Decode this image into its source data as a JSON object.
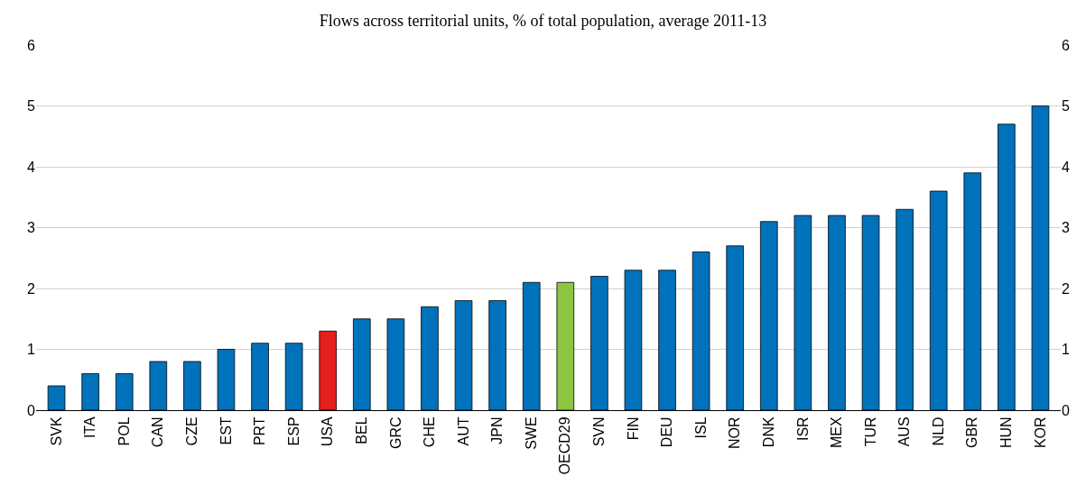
{
  "chart_data": {
    "type": "bar",
    "title": "Flows across territorial units, % of total population, average 2011-13",
    "categories": [
      "SVK",
      "ITA",
      "POL",
      "CAN",
      "CZE",
      "EST",
      "PRT",
      "ESP",
      "USA",
      "BEL",
      "GRC",
      "CHE",
      "AUT",
      "JPN",
      "SWE",
      "OECD29",
      "SVN",
      "FIN",
      "DEU",
      "ISL",
      "NOR",
      "DNK",
      "ISR",
      "MEX",
      "TUR",
      "AUS",
      "NLD",
      "GBR",
      "HUN",
      "KOR"
    ],
    "values": [
      0.4,
      0.6,
      0.6,
      0.8,
      0.8,
      1.0,
      1.1,
      1.1,
      1.3,
      1.5,
      1.5,
      1.7,
      1.8,
      1.8,
      2.1,
      2.1,
      2.2,
      2.3,
      2.3,
      2.6,
      2.7,
      3.1,
      3.2,
      3.2,
      3.2,
      3.3,
      3.6,
      3.9,
      4.7,
      5.0
    ],
    "colors": [
      "#0072bc",
      "#0072bc",
      "#0072bc",
      "#0072bc",
      "#0072bc",
      "#0072bc",
      "#0072bc",
      "#0072bc",
      "#e3201b",
      "#0072bc",
      "#0072bc",
      "#0072bc",
      "#0072bc",
      "#0072bc",
      "#0072bc",
      "#8cc540",
      "#0072bc",
      "#0072bc",
      "#0072bc",
      "#0072bc",
      "#0072bc",
      "#0072bc",
      "#0072bc",
      "#0072bc",
      "#0072bc",
      "#0072bc",
      "#0072bc",
      "#0072bc",
      "#0072bc",
      "#0072bc"
    ],
    "ylim": [
      0,
      6
    ],
    "yticks": [
      0,
      1,
      2,
      3,
      4,
      5,
      6
    ],
    "y2lim": [
      0,
      6
    ],
    "y2ticks": [
      0,
      1,
      2,
      3,
      4,
      5,
      6
    ],
    "grid": "y"
  }
}
